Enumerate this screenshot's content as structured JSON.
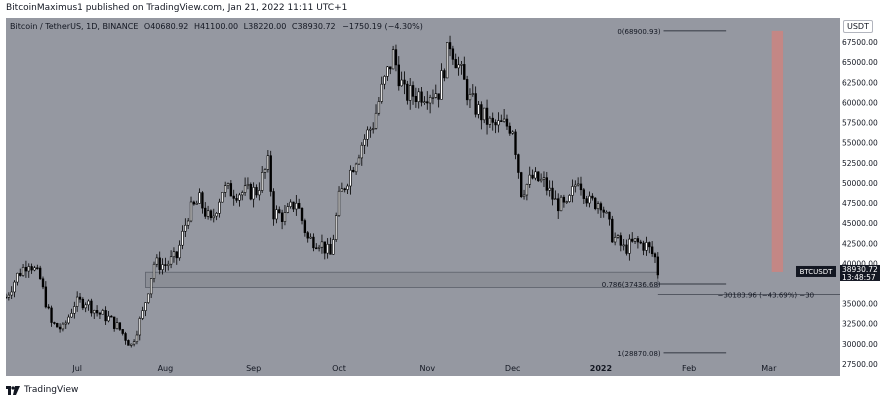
{
  "header": {
    "published_line": "BitcoinMaximus1 published on TradingView.com, Jan 21, 2022 11:11 UTC+1"
  },
  "ohlc": {
    "symbol": "Bitcoin / TetherUS, 1D, BINANCE",
    "open_label": "O",
    "open": "40680.92",
    "high_label": "H",
    "high": "41100.00",
    "low_label": "L",
    "low": "38220.00",
    "close_label": "C",
    "close": "38930.72",
    "change": "−1750.19 (−4.30%)"
  },
  "footer": {
    "brand": "TradingView"
  },
  "chart_data": {
    "type": "candlestick",
    "unit": "USDT",
    "y_range": [
      26000,
      70500
    ],
    "y_ticks": [
      {
        "value": 67500,
        "label": "67500.00"
      },
      {
        "value": 65000,
        "label": "65000.00"
      },
      {
        "value": 62500,
        "label": "62500.00"
      },
      {
        "value": 60000,
        "label": "60000.00"
      },
      {
        "value": 57500,
        "label": "57500.00"
      },
      {
        "value": 55000,
        "label": "55000.00"
      },
      {
        "value": 52500,
        "label": "52500.00"
      },
      {
        "value": 50000,
        "label": "50000.00"
      },
      {
        "value": 47500,
        "label": "47500.00"
      },
      {
        "value": 45000,
        "label": "45000.00"
      },
      {
        "value": 42500,
        "label": "42500.00"
      },
      {
        "value": 40000,
        "label": "40000.00"
      },
      {
        "value": 35000,
        "label": "35000.00"
      },
      {
        "value": 32500,
        "label": "32500.00"
      },
      {
        "value": 30000,
        "label": "30000.00"
      },
      {
        "value": 27500,
        "label": "27500.00"
      }
    ],
    "x_ticks": [
      {
        "date": "2021-07-01",
        "label": "Jul",
        "bold": false
      },
      {
        "date": "2021-08-01",
        "label": "Aug",
        "bold": false
      },
      {
        "date": "2021-09-01",
        "label": "Sep",
        "bold": false
      },
      {
        "date": "2021-10-01",
        "label": "Oct",
        "bold": false
      },
      {
        "date": "2021-11-01",
        "label": "Nov",
        "bold": false
      },
      {
        "date": "2021-12-01",
        "label": "Dec",
        "bold": false
      },
      {
        "date": "2022-01-01",
        "label": "2022",
        "bold": true
      },
      {
        "date": "2022-02-01",
        "label": "Feb",
        "bold": false
      },
      {
        "date": "2022-03-01",
        "label": "Mar",
        "bold": false
      }
    ],
    "x_range": [
      "2021-06-06",
      "2022-03-26"
    ],
    "price_path": [
      [
        "2021-06-06",
        35800
      ],
      [
        "2021-06-10",
        38500
      ],
      [
        "2021-06-14",
        40300
      ],
      [
        "2021-06-18",
        38000
      ],
      [
        "2021-06-22",
        32500
      ],
      [
        "2021-06-26",
        31800
      ],
      [
        "2021-06-30",
        35000
      ],
      [
        "2021-07-04",
        35300
      ],
      [
        "2021-07-08",
        33900
      ],
      [
        "2021-07-12",
        33200
      ],
      [
        "2021-07-16",
        31800
      ],
      [
        "2021-07-20",
        29800
      ],
      [
        "2021-07-24",
        33800
      ],
      [
        "2021-07-28",
        40000
      ],
      [
        "2021-08-01",
        39800
      ],
      [
        "2021-08-05",
        40800
      ],
      [
        "2021-08-09",
        46200
      ],
      [
        "2021-08-13",
        47800
      ],
      [
        "2021-08-17",
        45000
      ],
      [
        "2021-08-21",
        49200
      ],
      [
        "2021-08-25",
        48900
      ],
      [
        "2021-08-29",
        48800
      ],
      [
        "2021-09-02",
        49000
      ],
      [
        "2021-09-06",
        52300
      ],
      [
        "2021-09-08",
        46300
      ],
      [
        "2021-09-12",
        45800
      ],
      [
        "2021-09-16",
        47800
      ],
      [
        "2021-09-20",
        43000
      ],
      [
        "2021-09-24",
        42800
      ],
      [
        "2021-09-28",
        41000
      ],
      [
        "2021-10-01",
        48000
      ],
      [
        "2021-10-05",
        51500
      ],
      [
        "2021-10-09",
        54900
      ],
      [
        "2021-10-13",
        57400
      ],
      [
        "2021-10-16",
        61500
      ],
      [
        "2021-10-20",
        65900
      ],
      [
        "2021-10-24",
        61000
      ],
      [
        "2021-10-28",
        61000
      ],
      [
        "2021-11-01",
        61300
      ],
      [
        "2021-11-05",
        61400
      ],
      [
        "2021-11-09",
        67500
      ],
      [
        "2021-11-12",
        64500
      ],
      [
        "2021-11-16",
        60300
      ],
      [
        "2021-11-20",
        58500
      ],
      [
        "2021-11-24",
        57000
      ],
      [
        "2021-11-28",
        57200
      ],
      [
        "2021-12-01",
        57000
      ],
      [
        "2021-12-04",
        49000
      ],
      [
        "2021-12-08",
        50600
      ],
      [
        "2021-12-12",
        50000
      ],
      [
        "2021-12-16",
        47600
      ],
      [
        "2021-12-20",
        46800
      ],
      [
        "2021-12-24",
        50800
      ],
      [
        "2021-12-28",
        47500
      ],
      [
        "2022-01-01",
        47700
      ],
      [
        "2022-01-05",
        43500
      ],
      [
        "2022-01-09",
        41800
      ],
      [
        "2022-01-13",
        42600
      ],
      [
        "2022-01-17",
        42200
      ],
      [
        "2022-01-20",
        40680
      ],
      [
        "2022-01-21",
        38930
      ]
    ],
    "support_zone": {
      "low": 37000,
      "high": 38900,
      "from": "2021-07-25",
      "to": "2022-01-21"
    },
    "fib_levels": [
      {
        "ratio": "0",
        "value": 68900.93,
        "label": "0(68900.93)"
      },
      {
        "ratio": "0.786",
        "value": 37436.68,
        "label": "0.786(37436.68)"
      },
      {
        "ratio": "1",
        "value": 28870.08,
        "label": "1(28870.08)"
      }
    ],
    "measure": {
      "label": "−30183.96 (−43.69%) −30",
      "value": 36100,
      "from": "2022-01-21",
      "to": "2022-03-26"
    },
    "highlight_bar": {
      "from": "2022-03-02",
      "to": "2022-03-06",
      "top": 68900,
      "bottom": 38930,
      "color": "#c98582"
    },
    "last_price": {
      "symbol": "BTCUSDT",
      "value": 38930.72,
      "label": "38930.72",
      "countdown": "13:48:57"
    }
  }
}
